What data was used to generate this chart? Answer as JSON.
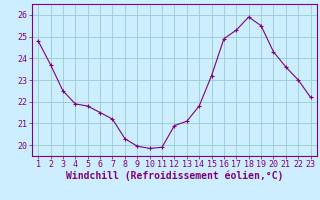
{
  "x": [
    1,
    2,
    3,
    4,
    5,
    6,
    7,
    8,
    9,
    10,
    11,
    12,
    13,
    14,
    15,
    16,
    17,
    18,
    19,
    20,
    21,
    22,
    23
  ],
  "y": [
    24.8,
    23.7,
    22.5,
    21.9,
    21.8,
    21.5,
    21.2,
    20.3,
    19.95,
    19.85,
    19.9,
    20.9,
    21.1,
    21.8,
    23.2,
    24.9,
    25.3,
    25.9,
    25.5,
    24.3,
    23.6,
    23.0,
    22.2
  ],
  "line_color": "#800080",
  "marker": "+",
  "marker_size": 3,
  "bg_color": "#cceeff",
  "grid_color": "#99cccc",
  "xlabel": "Windchill (Refroidissement éolien,°C)",
  "xlabel_fontsize": 7,
  "tick_fontsize": 6,
  "ylim": [
    19.5,
    26.5
  ],
  "xlim": [
    0.5,
    23.5
  ],
  "yticks": [
    20,
    21,
    22,
    23,
    24,
    25,
    26
  ],
  "xticks": [
    1,
    2,
    3,
    4,
    5,
    6,
    7,
    8,
    9,
    10,
    11,
    12,
    13,
    14,
    15,
    16,
    17,
    18,
    19,
    20,
    21,
    22,
    23
  ]
}
